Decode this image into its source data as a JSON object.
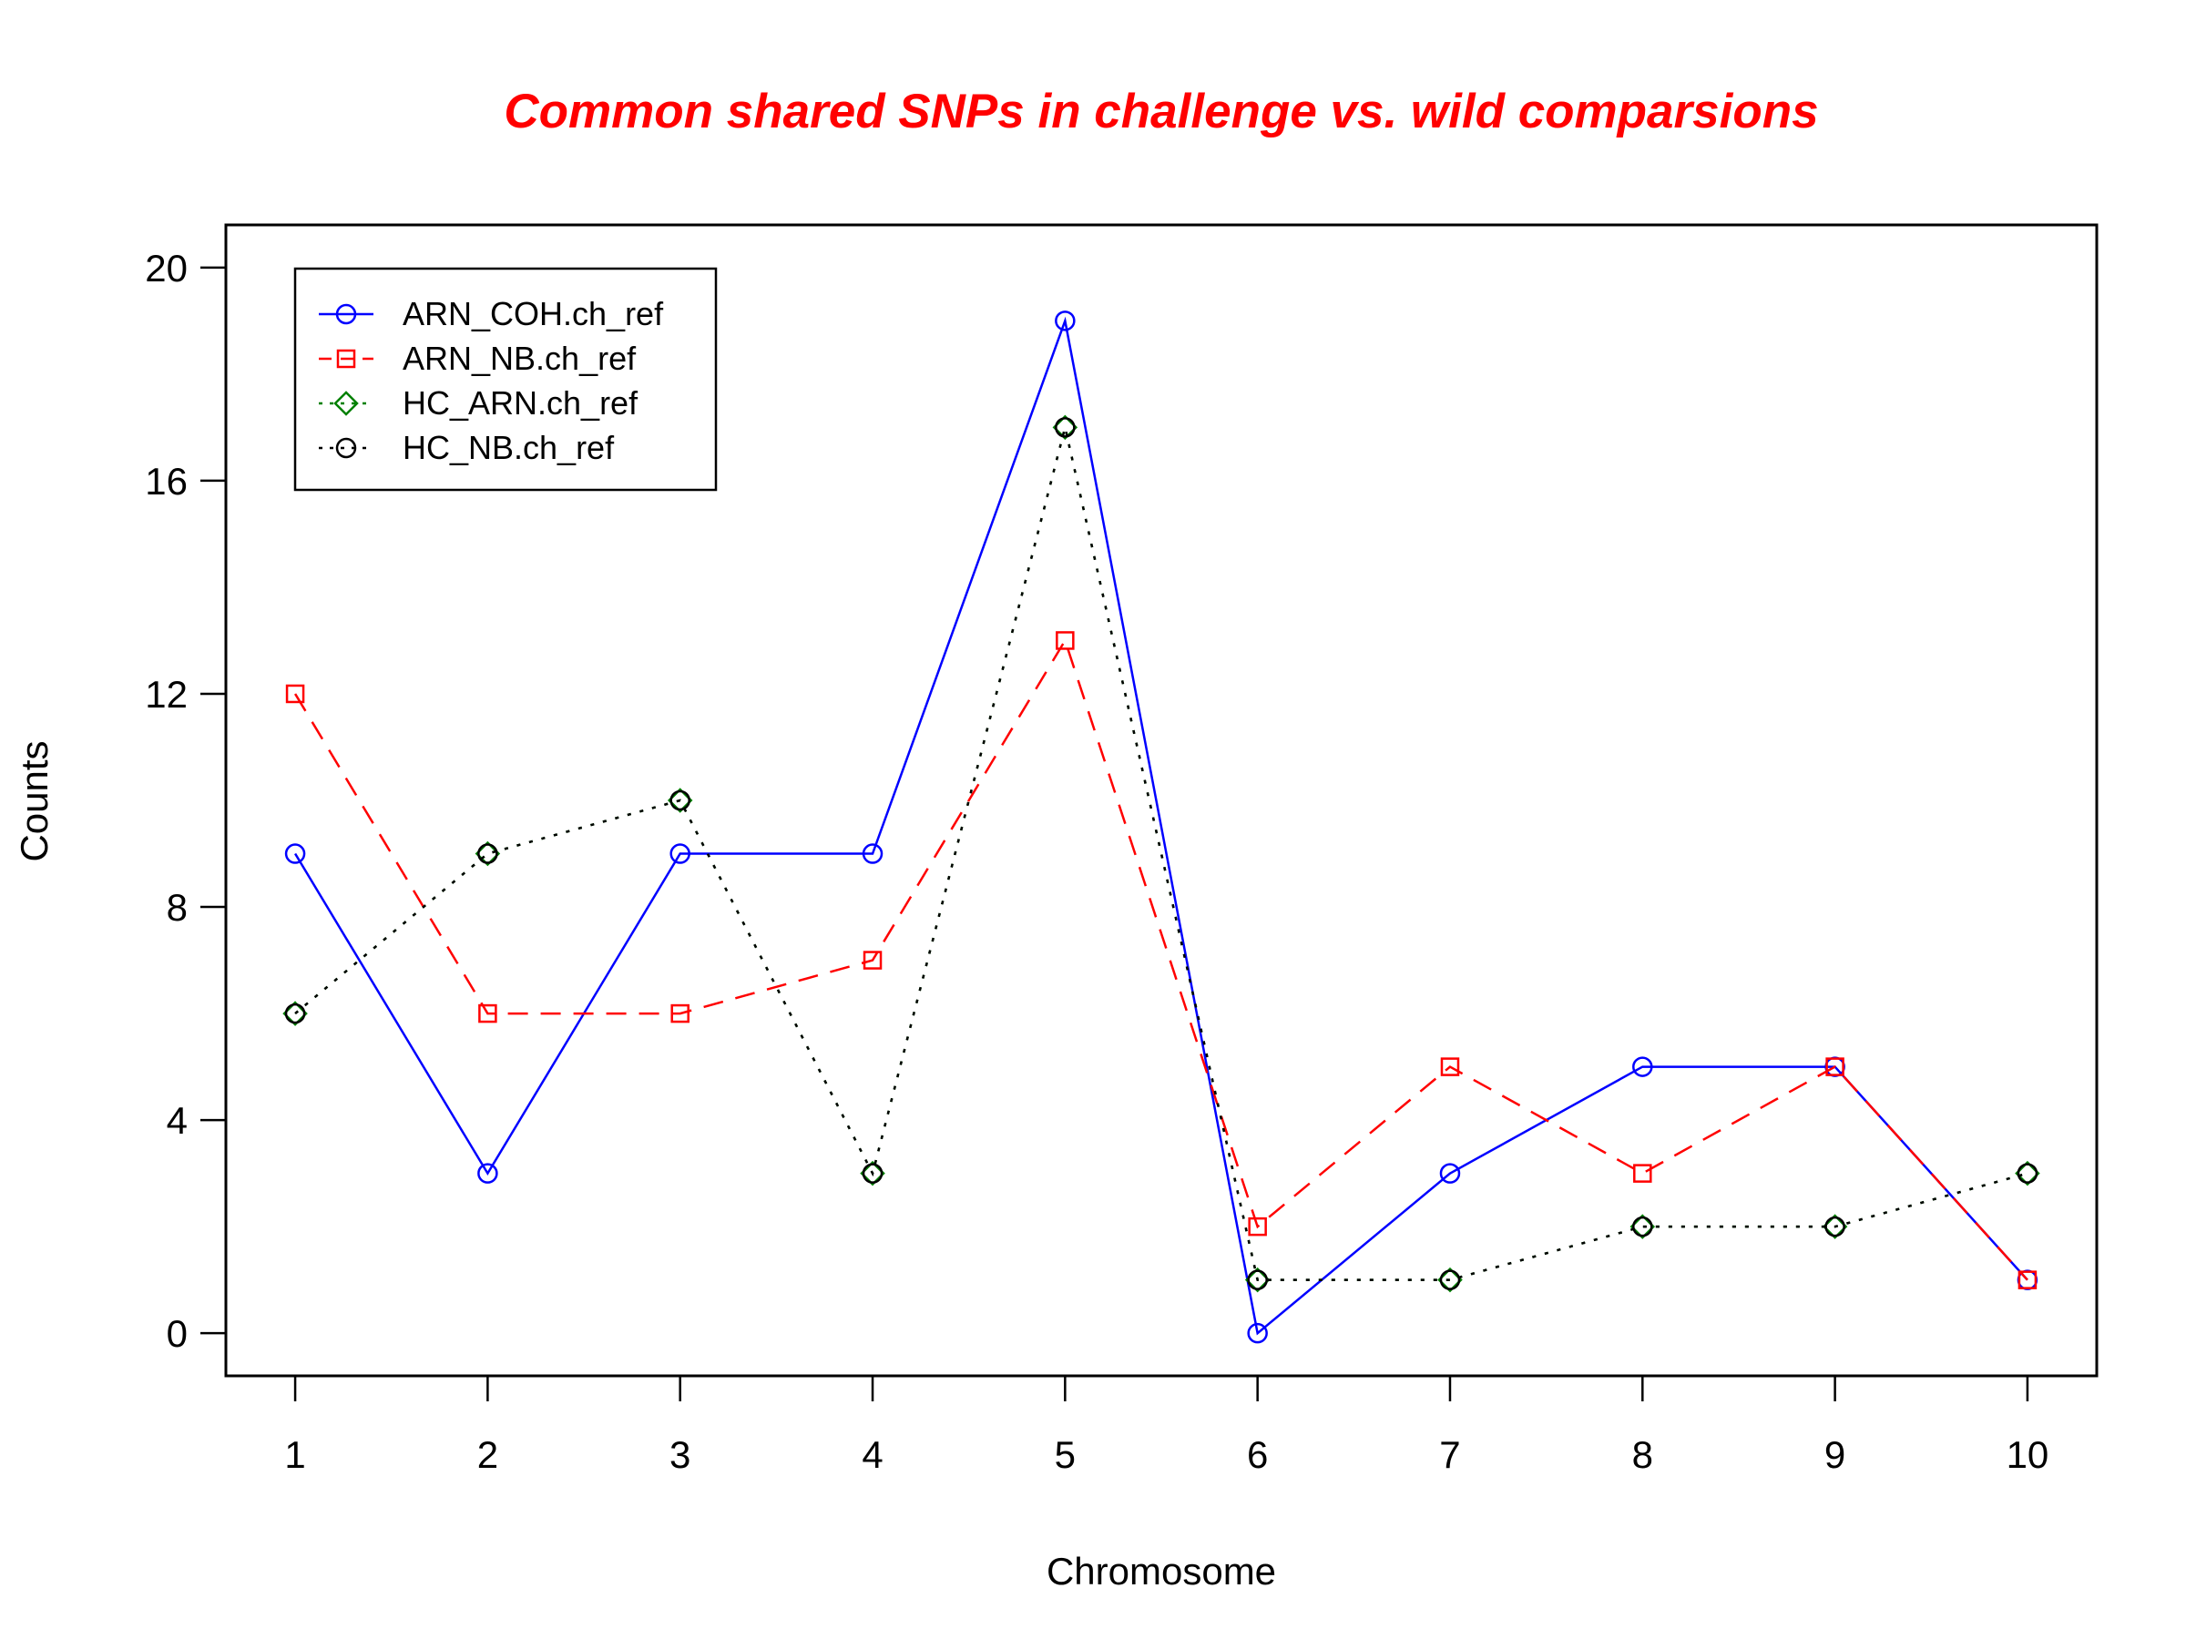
{
  "colors": {
    "title": "#ff0000",
    "frame": "#000000"
  },
  "chart_data": {
    "type": "line",
    "title": "Common shared SNPs in challenge vs. wild comparsions",
    "xlabel": "Chromosome",
    "ylabel": "Counts",
    "x": [
      1,
      2,
      3,
      4,
      5,
      6,
      7,
      8,
      9,
      10
    ],
    "xlim": [
      0.64,
      10.36
    ],
    "ylim": [
      -0.8,
      20.8
    ],
    "xticks": [
      "1",
      "2",
      "3",
      "4",
      "5",
      "6",
      "7",
      "8",
      "9",
      "10"
    ],
    "yticks": [
      "0",
      "4",
      "8",
      "12",
      "16",
      "20"
    ],
    "grid": false,
    "legend_position": "top-left",
    "series": [
      {
        "name": "ARN_COH.ch_ref",
        "color": "#0000ff",
        "dash": "solid",
        "marker": "circle",
        "values": [
          9,
          3,
          9,
          9,
          19,
          0,
          3,
          5,
          5,
          1
        ]
      },
      {
        "name": "ARN_NB.ch_ref",
        "color": "#ff0000",
        "dash": "dashed",
        "marker": "square",
        "values": [
          12,
          6,
          6,
          7,
          13,
          2,
          5,
          3,
          5,
          1
        ]
      },
      {
        "name": "HC_ARN.ch_ref",
        "color": "#008000",
        "dash": "dotted",
        "marker": "diamond",
        "values": [
          6,
          9,
          10,
          3,
          17,
          1,
          1,
          2,
          2,
          3
        ]
      },
      {
        "name": "HC_NB.ch_ref",
        "color": "#000000",
        "dash": "dotted",
        "marker": "circle",
        "values": [
          6,
          9,
          10,
          3,
          17,
          1,
          1,
          2,
          2,
          3
        ]
      }
    ]
  }
}
